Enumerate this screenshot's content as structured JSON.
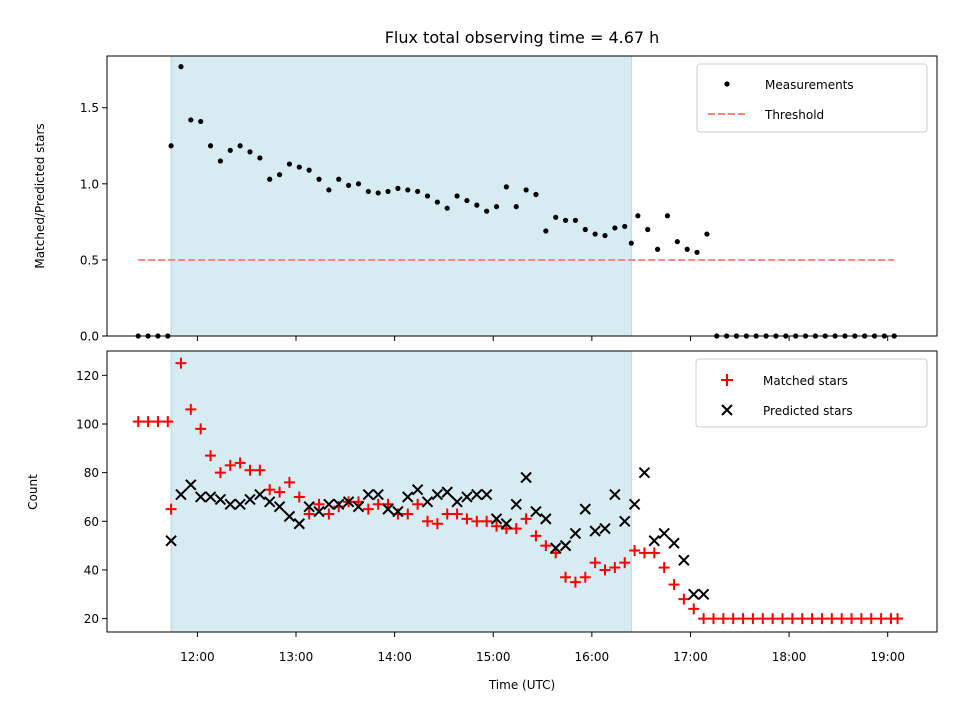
{
  "chart_data": [
    {
      "type": "scatter",
      "title": "Flux total observing time = 4.67 h",
      "xlabel": "",
      "ylabel": "Matched/Predicted stars",
      "ylim": [
        0,
        1.84
      ],
      "xlim": [
        "11:05",
        "19:30"
      ],
      "yticks": [
        "0.0",
        "0.5",
        "1.0",
        "1.5"
      ],
      "legend_position": "top-right",
      "shaded_region": {
        "start": "11:44",
        "end": "16:24",
        "color": "#add8e6"
      },
      "series": [
        {
          "name": "Measurements",
          "marker": "dot",
          "color": "#000000",
          "x": [
            "11:24",
            "11:30",
            "11:36",
            "11:42",
            "11:44",
            "11:50",
            "11:56",
            "12:02",
            "12:08",
            "12:14",
            "12:20",
            "12:26",
            "12:32",
            "12:38",
            "12:44",
            "12:50",
            "12:56",
            "13:02",
            "13:08",
            "13:14",
            "13:20",
            "13:26",
            "13:32",
            "13:38",
            "13:44",
            "13:50",
            "13:56",
            "14:02",
            "14:08",
            "14:14",
            "14:20",
            "14:26",
            "14:32",
            "14:38",
            "14:44",
            "14:50",
            "14:56",
            "15:02",
            "15:08",
            "15:14",
            "15:20",
            "15:26",
            "15:32",
            "15:38",
            "15:44",
            "15:50",
            "15:56",
            "16:02",
            "16:08",
            "16:14",
            "16:20",
            "16:24",
            "16:28",
            "16:34",
            "16:40",
            "16:46",
            "16:52",
            "16:58",
            "17:04",
            "17:10",
            "17:16",
            "17:22",
            "17:28",
            "17:34",
            "17:40",
            "17:46",
            "17:52",
            "17:58",
            "18:04",
            "18:10",
            "18:16",
            "18:22",
            "18:28",
            "18:34",
            "18:40",
            "18:46",
            "18:52",
            "18:58",
            "19:04"
          ],
          "y": [
            0,
            0,
            0,
            0,
            1.25,
            1.77,
            1.42,
            1.41,
            1.25,
            1.15,
            1.22,
            1.25,
            1.21,
            1.17,
            1.03,
            1.06,
            1.13,
            1.11,
            1.09,
            1.03,
            0.96,
            1.03,
            0.99,
            1.0,
            0.95,
            0.94,
            0.95,
            0.97,
            0.96,
            0.95,
            0.92,
            0.88,
            0.84,
            0.92,
            0.89,
            0.86,
            0.82,
            0.85,
            0.98,
            0.85,
            0.96,
            0.93,
            0.69,
            0.78,
            0.76,
            0.76,
            0.7,
            0.67,
            0.66,
            0.71,
            0.72,
            0.61,
            0.79,
            0.7,
            0.57,
            0.79,
            0.62,
            0.57,
            0.55,
            0.67,
            0,
            0,
            0,
            0,
            0,
            0,
            0,
            0,
            0,
            0,
            0,
            0,
            0,
            0,
            0,
            0,
            0,
            0,
            0
          ]
        },
        {
          "name": "Threshold",
          "marker": "dashed-line",
          "color": "#ff7f7f",
          "x": [
            "11:24",
            "19:04"
          ],
          "y": [
            0.5,
            0.5
          ]
        }
      ]
    },
    {
      "type": "scatter",
      "title": "",
      "xlabel": "Time (UTC)",
      "ylabel": "Count",
      "ylim": [
        14.5,
        130
      ],
      "xlim": [
        "11:05",
        "19:30"
      ],
      "xticks": [
        "12:00",
        "13:00",
        "14:00",
        "15:00",
        "16:00",
        "17:00",
        "18:00",
        "19:00"
      ],
      "yticks": [
        "20",
        "40",
        "60",
        "80",
        "100",
        "120"
      ],
      "legend_position": "top-right",
      "shaded_region": {
        "start": "11:44",
        "end": "16:24",
        "color": "#add8e6"
      },
      "series": [
        {
          "name": "Matched stars",
          "marker": "plus",
          "color": "#ff0000",
          "x": [
            "11:24",
            "11:30",
            "11:36",
            "11:42",
            "11:44",
            "11:50",
            "11:56",
            "12:02",
            "12:08",
            "12:14",
            "12:20",
            "12:26",
            "12:32",
            "12:38",
            "12:44",
            "12:50",
            "12:56",
            "13:02",
            "13:08",
            "13:14",
            "13:20",
            "13:26",
            "13:32",
            "13:38",
            "13:44",
            "13:50",
            "13:56",
            "14:02",
            "14:08",
            "14:14",
            "14:20",
            "14:26",
            "14:32",
            "14:38",
            "14:44",
            "14:50",
            "14:56",
            "15:02",
            "15:08",
            "15:14",
            "15:20",
            "15:26",
            "15:32",
            "15:38",
            "15:44",
            "15:50",
            "15:56",
            "16:02",
            "16:08",
            "16:14",
            "16:20",
            "16:26",
            "16:32",
            "16:38",
            "16:44",
            "16:50",
            "16:56",
            "17:02",
            "17:08",
            "17:14",
            "17:20",
            "17:26",
            "17:32",
            "17:38",
            "17:44",
            "17:50",
            "17:56",
            "18:02",
            "18:08",
            "18:14",
            "18:20",
            "18:26",
            "18:32",
            "18:38",
            "18:44",
            "18:50",
            "18:56",
            "19:02",
            "19:06"
          ],
          "y": [
            101,
            101,
            101,
            101,
            65,
            125,
            106,
            98,
            87,
            80,
            83,
            84,
            81,
            81,
            73,
            72,
            76,
            70,
            63,
            67,
            63,
            66,
            68,
            68,
            65,
            67,
            67,
            63,
            63,
            67,
            60,
            59,
            63,
            63,
            61,
            60,
            60,
            58,
            57,
            57,
            61,
            54,
            50,
            47,
            37,
            35,
            37,
            43,
            40,
            41,
            43,
            48,
            47,
            47,
            41,
            34,
            28,
            24,
            20,
            20,
            20,
            20,
            20,
            20,
            20,
            20,
            20,
            20,
            20,
            20,
            20,
            20,
            20,
            20,
            20,
            20,
            20,
            20,
            20
          ]
        },
        {
          "name": "Predicted stars",
          "marker": "x",
          "color": "#000000",
          "x": [
            "11:44",
            "11:50",
            "11:56",
            "12:02",
            "12:08",
            "12:14",
            "12:20",
            "12:26",
            "12:32",
            "12:38",
            "12:44",
            "12:50",
            "12:56",
            "13:02",
            "13:08",
            "13:14",
            "13:20",
            "13:26",
            "13:32",
            "13:38",
            "13:44",
            "13:50",
            "13:56",
            "14:02",
            "14:08",
            "14:14",
            "14:20",
            "14:26",
            "14:32",
            "14:38",
            "14:44",
            "14:50",
            "14:56",
            "15:02",
            "15:08",
            "15:14",
            "15:20",
            "15:26",
            "15:32",
            "15:38",
            "15:44",
            "15:50",
            "15:56",
            "16:02",
            "16:08",
            "16:14",
            "16:20",
            "16:26",
            "16:32",
            "16:38",
            "16:44",
            "16:50",
            "16:56",
            "17:02",
            "17:08"
          ],
          "y": [
            52,
            71,
            75,
            70,
            70,
            69,
            67,
            67,
            69,
            71,
            68,
            66,
            62,
            59,
            66,
            64,
            67,
            67,
            68,
            66,
            71,
            71,
            65,
            64,
            70,
            73,
            68,
            71,
            72,
            68,
            70,
            71,
            71,
            61,
            59,
            67,
            78,
            64,
            61,
            49,
            50,
            55,
            65,
            56,
            57,
            71,
            60,
            67,
            80,
            52,
            55,
            51,
            44,
            30,
            30
          ]
        }
      ]
    }
  ]
}
